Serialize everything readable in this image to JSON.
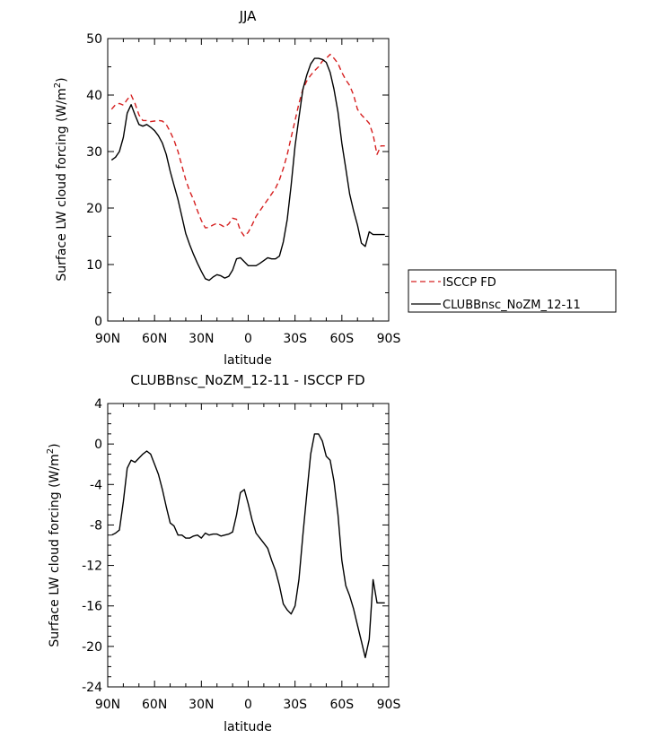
{
  "chart_data": [
    {
      "type": "line",
      "title": "JJA",
      "xlabel": "latitude",
      "ylabel": "Surface LW cloud forcing (W/m²)",
      "ylabel_main": "Surface LW cloud forcing (W/m",
      "ylabel_sup": "2",
      "ylabel_end": ")",
      "xlim": [
        -90,
        90
      ],
      "ylim": [
        0,
        50
      ],
      "xticks": [
        -90,
        -60,
        -30,
        0,
        30,
        60,
        90
      ],
      "xtick_labels": [
        "90N",
        "60N",
        "30N",
        "0",
        "30S",
        "60S",
        "90S"
      ],
      "yticks": [
        0,
        10,
        20,
        30,
        40,
        50
      ],
      "ytick_labels": [
        "0",
        "10",
        "20",
        "30",
        "40",
        "50"
      ],
      "legend": {
        "placement": "right",
        "entries": [
          "ISCCP FD",
          "CLUBBnsc_NoZM_12-11"
        ]
      },
      "series": [
        {
          "name": "ISCCP FD",
          "color": "#d62020",
          "dash": "dashed",
          "x": [
            -87.5,
            -85,
            -82.5,
            -80,
            -77.5,
            -75,
            -72.5,
            -70,
            -67.5,
            -65,
            -62.5,
            -60,
            -57.5,
            -55,
            -52.5,
            -50,
            -47.5,
            -45,
            -42.5,
            -40,
            -37.5,
            -35,
            -32.5,
            -30,
            -27.5,
            -25,
            -22.5,
            -20,
            -17.5,
            -15,
            -12.5,
            -10,
            -7.5,
            -5,
            -2.5,
            0,
            2.5,
            5,
            7.5,
            10,
            12.5,
            15,
            17.5,
            20,
            22.5,
            25,
            27.5,
            30,
            32.5,
            35,
            37.5,
            40,
            42.5,
            45,
            47.5,
            50,
            52.5,
            55,
            57.5,
            60,
            62.5,
            65,
            67.5,
            70,
            72.5,
            75,
            77.5,
            80,
            82.5,
            85,
            87.5
          ],
          "values": [
            37.5,
            38.3,
            38.5,
            38.2,
            39.2,
            40.0,
            38.5,
            36.5,
            35.5,
            35.5,
            35.3,
            35.4,
            35.5,
            35.4,
            34.8,
            33.5,
            32.0,
            30.0,
            27.5,
            25.0,
            23.0,
            21.5,
            19.5,
            17.8,
            16.5,
            16.6,
            17.0,
            17.3,
            17.0,
            16.6,
            17.2,
            18.2,
            18.0,
            16.0,
            15.0,
            15.7,
            17.0,
            18.5,
            19.5,
            20.5,
            21.5,
            22.5,
            23.5,
            25.0,
            27.0,
            29.5,
            32.5,
            35.5,
            38.5,
            41.0,
            42.5,
            43.5,
            44.3,
            45.0,
            46.0,
            46.5,
            47.2,
            46.5,
            45.6,
            44.0,
            42.7,
            41.7,
            40.0,
            37.5,
            36.5,
            35.8,
            35.0,
            33.0,
            29.5,
            31.0,
            31.0
          ]
        },
        {
          "name": "CLUBBnsc_NoZM_12-11",
          "color": "#000000",
          "dash": "solid",
          "x": [
            -87.5,
            -85,
            -82.5,
            -80,
            -77.5,
            -75,
            -72.5,
            -70,
            -67.5,
            -65,
            -62.5,
            -60,
            -57.5,
            -55,
            -52.5,
            -50,
            -47.5,
            -45,
            -42.5,
            -40,
            -37.5,
            -35,
            -32.5,
            -30,
            -27.5,
            -25,
            -22.5,
            -20,
            -17.5,
            -15,
            -12.5,
            -10,
            -7.5,
            -5,
            -2.5,
            0,
            2.5,
            5,
            7.5,
            10,
            12.5,
            15,
            17.5,
            20,
            22.5,
            25,
            27.5,
            30,
            32.5,
            35,
            37.5,
            40,
            42.5,
            45,
            47.5,
            50,
            52.5,
            55,
            57.5,
            60,
            62.5,
            65,
            67.5,
            70,
            72.5,
            75,
            77.5,
            80,
            82.5,
            85,
            87.5
          ],
          "values": [
            28.5,
            29.0,
            30.0,
            32.5,
            36.8,
            38.3,
            36.5,
            34.8,
            34.5,
            34.8,
            34.3,
            33.7,
            32.8,
            31.5,
            29.5,
            26.5,
            24.0,
            21.5,
            18.5,
            15.5,
            13.5,
            11.8,
            10.2,
            8.8,
            7.5,
            7.2,
            7.8,
            8.2,
            8.0,
            7.6,
            7.9,
            9.0,
            11.0,
            11.2,
            10.5,
            9.8,
            9.8,
            9.8,
            10.2,
            10.7,
            11.2,
            11.0,
            11.0,
            11.5,
            14.0,
            18.0,
            24.0,
            31.0,
            36.0,
            41.0,
            43.5,
            45.5,
            46.5,
            46.5,
            46.3,
            45.8,
            44.0,
            41.0,
            37.0,
            31.5,
            27.0,
            22.5,
            19.5,
            17.0,
            13.8,
            13.2,
            15.8,
            15.3,
            15.3,
            15.3,
            15.3
          ]
        }
      ]
    },
    {
      "type": "line",
      "title": "CLUBBnsc_NoZM_12-11 - ISCCP FD",
      "xlabel": "latitude",
      "ylabel": "Surface LW cloud forcing (W/m²)",
      "ylabel_main": "Surface LW cloud forcing (W/m",
      "ylabel_sup": "2",
      "ylabel_end": ")",
      "xlim": [
        -90,
        90
      ],
      "ylim": [
        -24,
        4
      ],
      "xticks": [
        -90,
        -60,
        -30,
        0,
        30,
        60,
        90
      ],
      "xtick_labels": [
        "90N",
        "60N",
        "30N",
        "0",
        "30S",
        "60S",
        "90S"
      ],
      "yticks": [
        -24,
        -20,
        -16,
        -12,
        -8,
        -4,
        0,
        4
      ],
      "ytick_labels": [
        "-24",
        "-20",
        "-16",
        "-12",
        "-8",
        "-4",
        "0",
        "4"
      ],
      "series": [
        {
          "color": "#000000",
          "dash": "solid",
          "x": [
            -87.5,
            -85,
            -82.5,
            -80,
            -77.5,
            -75,
            -72.5,
            -70,
            -67.5,
            -65,
            -62.5,
            -60,
            -57.5,
            -55,
            -52.5,
            -50,
            -47.5,
            -45,
            -42.5,
            -40,
            -37.5,
            -35,
            -32.5,
            -30,
            -27.5,
            -25,
            -22.5,
            -20,
            -17.5,
            -15,
            -12.5,
            -10,
            -7.5,
            -5,
            -2.5,
            0,
            2.5,
            5,
            7.5,
            10,
            12.5,
            15,
            17.5,
            20,
            22.5,
            25,
            27.5,
            30,
            32.5,
            35,
            37.5,
            40,
            42.5,
            45,
            47.5,
            50,
            52.5,
            55,
            57.5,
            60,
            62.5,
            65,
            67.5,
            70,
            72.5,
            75,
            77.5,
            80,
            82.5,
            85,
            87.5
          ],
          "values": [
            -9.0,
            -8.8,
            -8.5,
            -5.7,
            -2.4,
            -1.6,
            -1.8,
            -1.4,
            -1.0,
            -0.7,
            -1.0,
            -2.0,
            -3.0,
            -4.5,
            -6.2,
            -7.8,
            -8.1,
            -9.0,
            -9.0,
            -9.3,
            -9.3,
            -9.1,
            -9.0,
            -9.3,
            -8.8,
            -9.0,
            -8.9,
            -8.9,
            -9.1,
            -9.0,
            -8.9,
            -8.7,
            -7.0,
            -4.8,
            -4.5,
            -5.9,
            -7.5,
            -8.8,
            -9.3,
            -9.8,
            -10.3,
            -11.5,
            -12.5,
            -14.0,
            -15.8,
            -16.4,
            -16.8,
            -16.0,
            -13.4,
            -9.0,
            -5.0,
            -1.0,
            1.0,
            1.0,
            0.3,
            -1.2,
            -1.6,
            -3.7,
            -7.0,
            -11.5,
            -14.0,
            -15.0,
            -16.3,
            -17.9,
            -19.5,
            -21.1,
            -19.3,
            -13.4,
            -15.7,
            -15.7,
            -15.7
          ]
        }
      ]
    }
  ]
}
